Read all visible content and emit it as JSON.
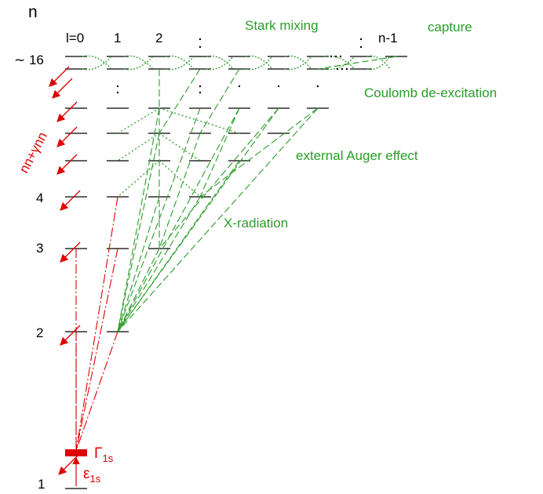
{
  "header": {
    "n_label": "n",
    "l_labels": [
      "l=0",
      "1",
      "2",
      "n-1"
    ]
  },
  "levels": {
    "top": "∼ 16",
    "n4": "4",
    "n3": "3",
    "n2": "2",
    "n1": "1"
  },
  "processes": {
    "stark": "Stark mixing",
    "capture": "capture",
    "coulomb": "Coulomb de-excitation",
    "auger": "external Auger effect",
    "xray": "X-radiation",
    "nuclear": "nn+γnn"
  },
  "ground": {
    "width_symbol": "Γ",
    "width_sub": "1s",
    "shift_symbol": "ε",
    "shift_sub": "1s"
  }
}
